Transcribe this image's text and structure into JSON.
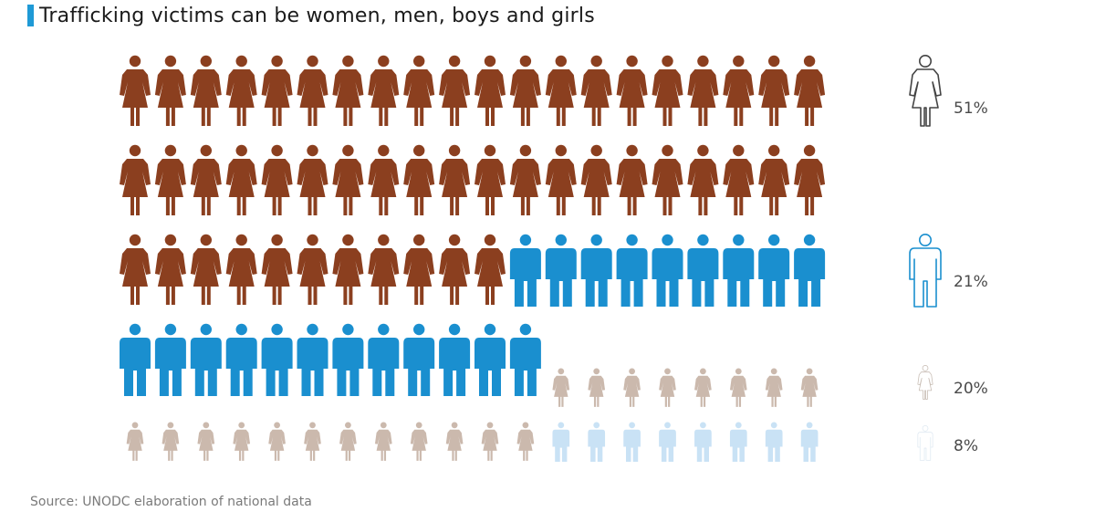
{
  "chart_data": {
    "type": "pictograph",
    "title": "Trafficking victims can be women, men, boys and girls",
    "source": "Source: UNODC elaboration of national data",
    "total_icons": 100,
    "columns": 20,
    "series": [
      {
        "name": "women",
        "value": 51,
        "label": "51%",
        "color": "#8b3f1f",
        "icon": "woman-icon"
      },
      {
        "name": "men",
        "value": 21,
        "label": "21%",
        "color": "#1a8fcf",
        "icon": "man-icon"
      },
      {
        "name": "girls",
        "value": 20,
        "label": "20%",
        "color": "#cbb9ad",
        "icon": "girl-icon"
      },
      {
        "name": "boys",
        "value": 8,
        "label": "8%",
        "color": "#c9e2f5",
        "icon": "boy-icon"
      }
    ]
  }
}
